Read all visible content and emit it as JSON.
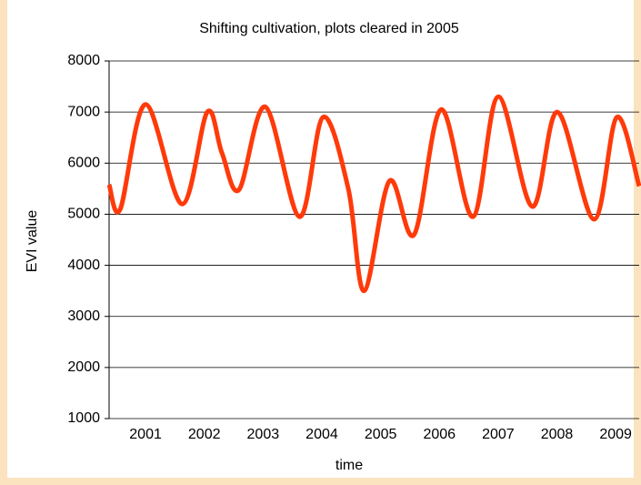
{
  "chart_data": {
    "type": "line",
    "title": "Shifting cultivation, plots cleared in 2005",
    "x_label": "time",
    "y_label": "EVI value",
    "x": [
      2000.38,
      2000.57,
      2001.0,
      2001.62,
      2002.05,
      2002.3,
      2002.59,
      2003.04,
      2003.62,
      2004.02,
      2004.45,
      2004.72,
      2005.15,
      2005.57,
      2006.03,
      2006.57,
      2007.0,
      2007.58,
      2008.01,
      2008.63,
      2009.02,
      2009.4
    ],
    "series": [
      {
        "name": "EVI",
        "color": "#ff3a0a",
        "values": [
          5580,
          5100,
          7150,
          5200,
          7000,
          6200,
          5480,
          7100,
          4950,
          6900,
          5500,
          3500,
          5650,
          4600,
          7050,
          4950,
          7300,
          5150,
          7000,
          4900,
          6900,
          5550
        ]
      }
    ],
    "xlim": [
      2000.38,
      2009.4
    ],
    "xticks": [
      2001,
      2002,
      2003,
      2004,
      2005,
      2006,
      2007,
      2008,
      2009
    ],
    "ylim": [
      1000,
      8000
    ],
    "yticks": [
      1000,
      2000,
      3000,
      4000,
      5000,
      6000,
      7000,
      8000
    ],
    "grid": true
  }
}
